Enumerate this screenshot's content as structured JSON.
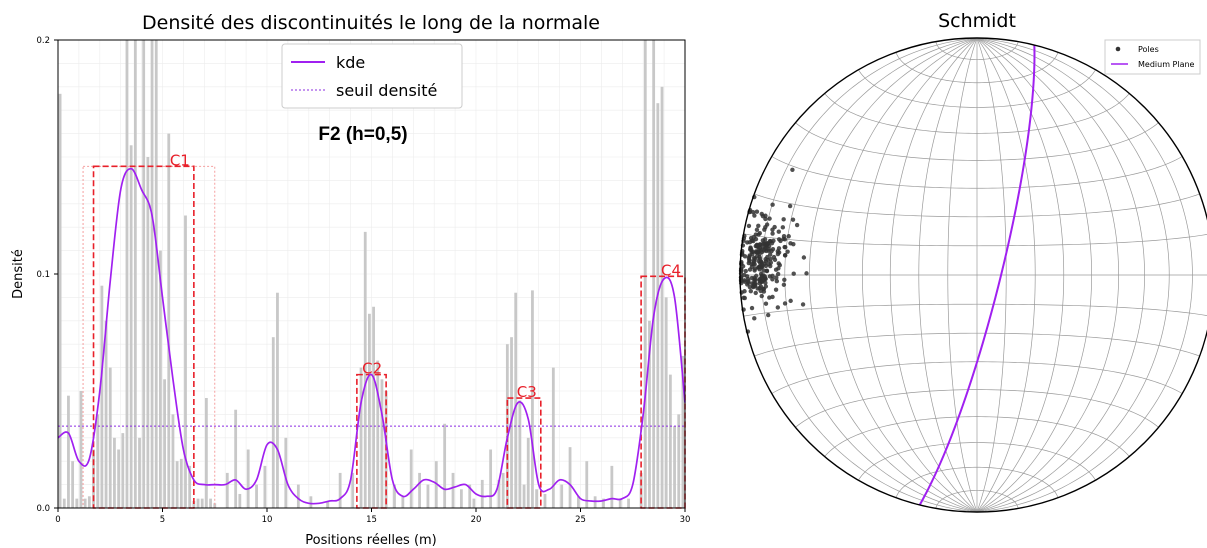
{
  "chart_data": [
    {
      "type": "bar",
      "title": "Densité des discontinuités le long de la normale",
      "xlabel": "Positions réelles (m)",
      "ylabel": "Densité",
      "xlim": [
        0,
        30
      ],
      "ylim": [
        0,
        0.2
      ],
      "x_ticks": [
        "0",
        "5",
        "10",
        "15",
        "20",
        "25",
        "30"
      ],
      "y_ticks": [
        "0.0",
        "0.1",
        "0.2"
      ],
      "grid": true,
      "legend_position": "top-center",
      "annotation": "F2 (h=0,5)",
      "colors": {
        "bars": "#c8c8c8",
        "kde": "#a020f0",
        "threshold": "#8b2be2",
        "clusters": "#e8202a",
        "cluster_halo": "#f5a0a0"
      },
      "legend": {
        "kde": "kde",
        "threshold": "seuil densité"
      },
      "threshold": 0.035,
      "bars": {
        "x": [
          0.1,
          0.3,
          0.5,
          0.7,
          0.9,
          1.1,
          1.3,
          1.5,
          1.7,
          1.9,
          2.1,
          2.3,
          2.5,
          2.7,
          2.9,
          3.1,
          3.3,
          3.5,
          3.7,
          3.9,
          4.1,
          4.3,
          4.5,
          4.7,
          4.9,
          5.1,
          5.3,
          5.5,
          5.7,
          5.9,
          6.1,
          6.3,
          6.5,
          6.7,
          6.9,
          7.1,
          7.3,
          7.5,
          8.1,
          8.5,
          8.7,
          9.1,
          9.5,
          9.9,
          10.3,
          10.5,
          10.9,
          11.5,
          12.1,
          12.9,
          13.5,
          14.1,
          14.5,
          14.7,
          14.9,
          15.1,
          15.3,
          15.5,
          15.7,
          16.1,
          16.5,
          16.9,
          17.3,
          17.7,
          18.1,
          18.5,
          18.9,
          19.3,
          19.7,
          19.9,
          20.3,
          20.7,
          21.1,
          21.3,
          21.5,
          21.7,
          21.9,
          22.1,
          22.3,
          22.5,
          22.7,
          22.9,
          23.3,
          23.7,
          24.1,
          24.5,
          24.9,
          25.3,
          25.7,
          26.1,
          26.5,
          26.9,
          27.3,
          27.9,
          28.1,
          28.3,
          28.5,
          28.7,
          28.9,
          29.1,
          29.3,
          29.5,
          29.7,
          29.9
        ],
        "values": [
          0.177,
          0.004,
          0.048,
          0.02,
          0.004,
          0.05,
          0.004,
          0.005,
          0.025,
          0.04,
          0.095,
          0.08,
          0.06,
          0.03,
          0.025,
          0.032,
          0.2,
          0.155,
          0.2,
          0.03,
          0.2,
          0.15,
          0.2,
          0.2,
          0.11,
          0.055,
          0.16,
          0.04,
          0.02,
          0.021,
          0.125,
          0.018,
          0.003,
          0.004,
          0.004,
          0.047,
          0.004,
          0.002,
          0.015,
          0.042,
          0.006,
          0.025,
          0.01,
          0.018,
          0.073,
          0.092,
          0.03,
          0.01,
          0.005,
          0.003,
          0.015,
          0.015,
          0.06,
          0.118,
          0.083,
          0.086,
          0.063,
          0.055,
          0.05,
          0.01,
          0.005,
          0.025,
          0.015,
          0.01,
          0.02,
          0.036,
          0.015,
          0.008,
          0.01,
          0.004,
          0.012,
          0.025,
          0.012,
          0.015,
          0.07,
          0.073,
          0.092,
          0.046,
          0.01,
          0.03,
          0.093,
          0.008,
          0.006,
          0.06,
          0.01,
          0.026,
          0.005,
          0.02,
          0.005,
          0.004,
          0.018,
          0.004,
          0.004,
          0.015,
          0.2,
          0.08,
          0.2,
          0.173,
          0.18,
          0.09,
          0.057,
          0.035,
          0.04,
          0.065
        ]
      },
      "kde": {
        "x": [
          0,
          0.5,
          1,
          1.5,
          2,
          2.5,
          3,
          3.5,
          4,
          4.5,
          5,
          5.5,
          6,
          6.5,
          7,
          7.5,
          8,
          8.5,
          9,
          9.5,
          10,
          10.5,
          11,
          11.5,
          12,
          12.5,
          13,
          13.5,
          14,
          14.5,
          15,
          15.5,
          16,
          16.5,
          17,
          17.5,
          18,
          18.5,
          19,
          19.5,
          20,
          20.5,
          21,
          21.5,
          22,
          22.5,
          23,
          23.5,
          24,
          24.5,
          25,
          25.5,
          26,
          26.5,
          27,
          27.5,
          28,
          28.5,
          29,
          29.5,
          30
        ],
        "values": [
          0.03,
          0.032,
          0.02,
          0.021,
          0.05,
          0.097,
          0.136,
          0.145,
          0.136,
          0.125,
          0.09,
          0.055,
          0.025,
          0.012,
          0.01,
          0.01,
          0.01,
          0.012,
          0.008,
          0.012,
          0.027,
          0.025,
          0.01,
          0.004,
          0.002,
          0.002,
          0.003,
          0.004,
          0.012,
          0.045,
          0.057,
          0.04,
          0.012,
          0.005,
          0.008,
          0.012,
          0.011,
          0.008,
          0.009,
          0.01,
          0.006,
          0.005,
          0.008,
          0.03,
          0.045,
          0.038,
          0.01,
          0.008,
          0.012,
          0.01,
          0.004,
          0.003,
          0.003,
          0.004,
          0.004,
          0.01,
          0.04,
          0.082,
          0.098,
          0.09,
          0.045
        ]
      },
      "clusters": [
        {
          "label": "C1",
          "x0": 1.7,
          "x1": 6.5,
          "y": 0.146
        },
        {
          "label": "C2",
          "x0": 14.3,
          "x1": 15.7,
          "y": 0.057
        },
        {
          "label": "C3",
          "x0": 21.5,
          "x1": 23.1,
          "y": 0.047
        },
        {
          "label": "C4",
          "x0": 27.9,
          "x1": 30.0,
          "y": 0.099
        }
      ],
      "cluster_halo": {
        "x0": 1.2,
        "x1": 7.5,
        "y": 0.146
      }
    },
    {
      "type": "scatter",
      "title": "Schmidt",
      "projection": "equal-area stereonet (lower hemisphere)",
      "colors": {
        "poles": "#333333",
        "plane": "#a020f0",
        "grid": "#999999"
      },
      "legend": {
        "poles": "Poles",
        "plane": "Medium Plane"
      },
      "legend_position": "top-right",
      "medium_plane": {
        "strike_deg": 14,
        "dip_deg": 82
      },
      "pole_cluster": {
        "trend_deg": 274,
        "plunge_deg": 9,
        "count": 260,
        "spread_deg": 6
      }
    }
  ]
}
